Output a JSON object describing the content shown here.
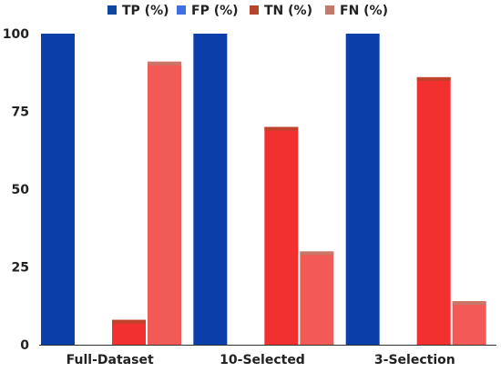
{
  "chart_data": {
    "type": "bar",
    "title": "",
    "xlabel": "",
    "ylabel": "",
    "categories": [
      "Full-Dataset",
      "10-Selected",
      "3-Selection"
    ],
    "series": [
      {
        "name": "TP (%)",
        "values": [
          100,
          100,
          100
        ],
        "color": "#0b3ea8",
        "legend_color": "#0d47a1"
      },
      {
        "name": "FP (%)",
        "values": [
          0,
          0,
          0
        ],
        "color": "#4a78e0",
        "legend_color": "#3f6fe0"
      },
      {
        "name": "TN (%)",
        "values": [
          8,
          70,
          86
        ],
        "color": "#f2302f",
        "legend_color": "#b5462d"
      },
      {
        "name": "FN (%)",
        "values": [
          91,
          30,
          14
        ],
        "color": "#f25a57",
        "legend_color": "#c27a6a"
      }
    ],
    "ylim": [
      0,
      100
    ],
    "yticks": [
      0,
      25,
      50,
      75,
      100
    ],
    "grid": false,
    "legend_position": "top"
  }
}
